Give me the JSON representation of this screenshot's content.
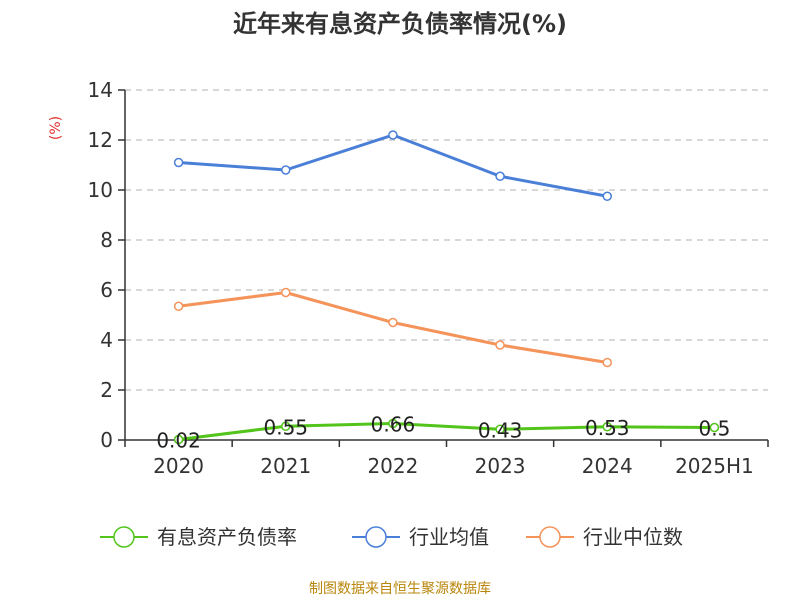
{
  "chart_data": {
    "type": "line",
    "title": "近年来有息资产负债率情况(%)",
    "ylabel": "(%)",
    "xlabel": "",
    "categories": [
      "2020",
      "2021",
      "2022",
      "2023",
      "2024",
      "2025H1"
    ],
    "ylim": [
      0,
      14
    ],
    "yticks": [
      0,
      2,
      4,
      6,
      8,
      10,
      12,
      14
    ],
    "grid": true,
    "legend_position": "bottom",
    "series": [
      {
        "name": "有息资产负债率",
        "color": "#52c41a",
        "values": [
          0.02,
          0.55,
          0.66,
          0.43,
          0.53,
          0.5
        ],
        "labels": [
          "0.02",
          "0.55",
          "0.66",
          "0.43",
          "0.53",
          "0.5"
        ]
      },
      {
        "name": "行业均值",
        "color": "#4a7fd8",
        "values": [
          11.1,
          10.8,
          12.2,
          10.55,
          9.75,
          null
        ]
      },
      {
        "name": "行业中位数",
        "color": "#f4935a",
        "values": [
          5.35,
          5.9,
          4.7,
          3.8,
          3.1,
          null
        ]
      }
    ]
  },
  "source_text": "制图数据来自恒生聚源数据库"
}
